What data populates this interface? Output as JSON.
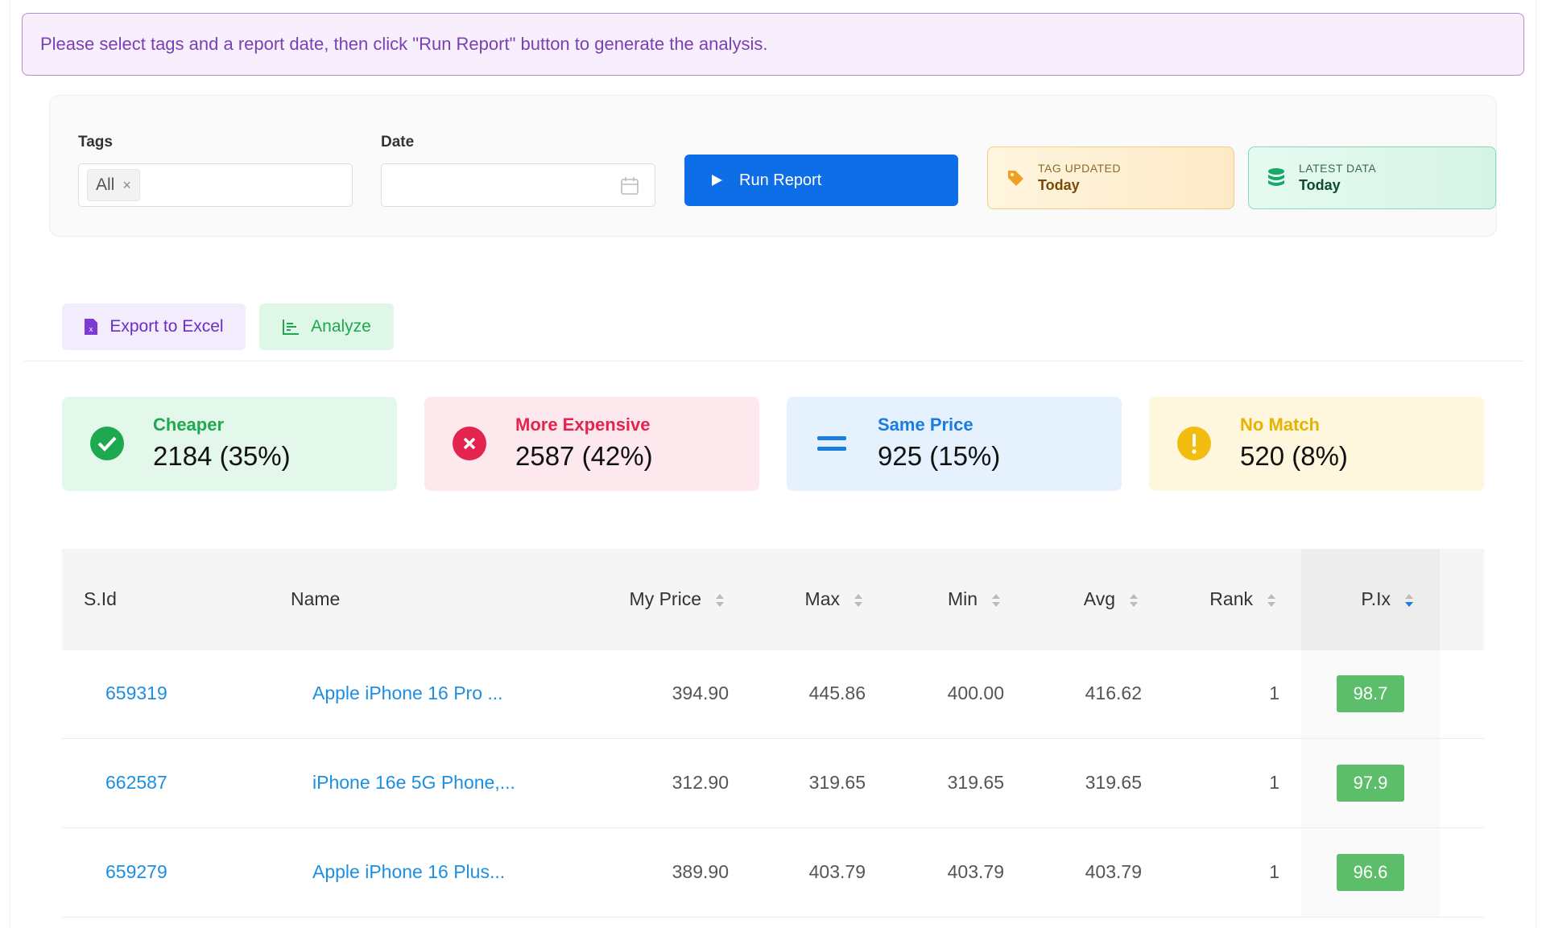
{
  "banner": {
    "message": "Please select tags and a report date, then click \"Run Report\" button to generate the analysis."
  },
  "filters": {
    "tags_label": "Tags",
    "tag_chip": "All",
    "date_label": "Date",
    "run_button": "Run Report"
  },
  "status": {
    "tag_updated": {
      "label": "TAG UPDATED",
      "value": "Today"
    },
    "latest_data": {
      "label": "LATEST DATA",
      "value": "Today"
    }
  },
  "actions": {
    "export": "Export to Excel",
    "analyze": "Analyze"
  },
  "stats": [
    {
      "label": "Cheaper",
      "value": "2184 (35%)"
    },
    {
      "label": "More Expensive",
      "value": "2587 (42%)"
    },
    {
      "label": "Same Price",
      "value": "925 (15%)"
    },
    {
      "label": "No Match",
      "value": "520 (8%)"
    }
  ],
  "table": {
    "headers": [
      "S.Id",
      "Name",
      "My Price",
      "Max",
      "Min",
      "Avg",
      "Rank",
      "P.Ix"
    ],
    "rows": [
      [
        "659319",
        "Apple iPhone 16 Pro ...",
        "394.90",
        "445.86",
        "400.00",
        "416.62",
        "1",
        "98.7"
      ],
      [
        "662587",
        "iPhone 16e 5G Phone,...",
        "312.90",
        "319.65",
        "319.65",
        "319.65",
        "1",
        "97.9"
      ],
      [
        "659279",
        "Apple iPhone 16 Plus...",
        "389.90",
        "403.79",
        "403.79",
        "403.79",
        "1",
        "96.6"
      ]
    ]
  }
}
